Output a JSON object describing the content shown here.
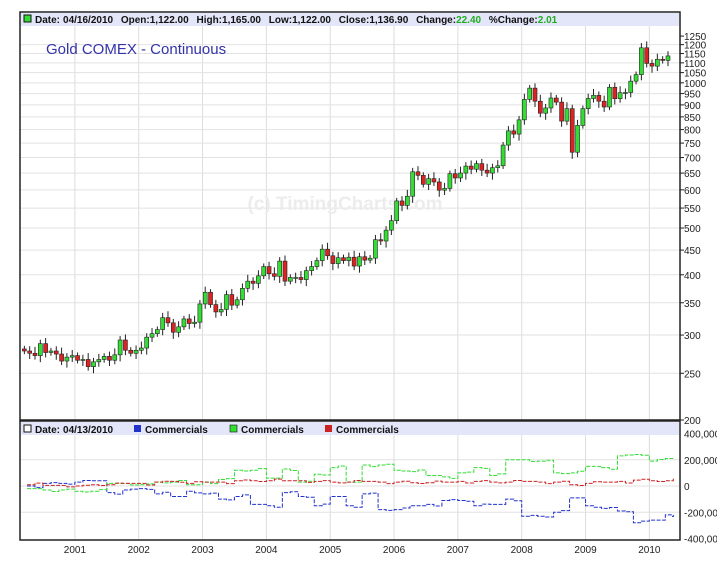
{
  "chart_data": [
    {
      "type": "candlestick",
      "title": "Gold COMEX - Continuous",
      "watermark": "(c) TimingCharts.com",
      "info": {
        "date_label": "Date:",
        "date": "04/16/2010",
        "open_label": "Open:",
        "open": "1,122.00",
        "high_label": "High:",
        "high": "1,165.00",
        "low_label": "Low:",
        "low": "1,122.00",
        "close_label": "Close:",
        "close": "1,136.90",
        "change_label": "Change:",
        "change": "22.40",
        "pct_label": "%Change:",
        "pct": "2.01"
      },
      "scale": "log",
      "ylim": [
        200,
        1250
      ],
      "yticks": [
        200,
        250,
        300,
        350,
        400,
        450,
        500,
        550,
        600,
        650,
        700,
        750,
        800,
        850,
        900,
        950,
        1000,
        1050,
        1100,
        1150,
        1200,
        1250
      ],
      "start": "2000-03",
      "interval": "month",
      "closes": [
        278,
        275,
        272,
        288,
        276,
        278,
        274,
        265,
        270,
        272,
        266,
        267,
        258,
        264,
        267,
        271,
        266,
        273,
        293,
        279,
        275,
        279,
        282,
        297,
        302,
        308,
        326,
        318,
        304,
        312,
        324,
        317,
        319,
        348,
        368,
        347,
        335,
        339,
        364,
        346,
        355,
        375,
        388,
        384,
        398,
        416,
        402,
        397,
        427,
        388,
        395,
        395,
        391,
        408,
        416,
        428,
        452,
        438,
        422,
        434,
        428,
        435,
        417,
        436,
        429,
        433,
        473,
        470,
        495,
        518,
        569,
        557,
        582,
        654,
        643,
        616,
        633,
        623,
        599,
        604,
        648,
        635,
        650,
        672,
        662,
        680,
        659,
        650,
        667,
        673,
        743,
        795,
        783,
        838,
        924,
        975,
        916,
        865,
        887,
        930,
        912,
        833,
        884,
        718,
        816,
        884,
        928,
        942,
        916,
        891,
        979,
        927,
        954,
        955,
        1008,
        1040,
        1182,
        1097,
        1083,
        1119,
        1113,
        1137
      ],
      "colors": {
        "up": "#33dd33",
        "down": "#dd2222"
      }
    },
    {
      "type": "line",
      "info": {
        "date_label": "Date:",
        "date": "04/13/2010"
      },
      "legend": [
        {
          "name": "Commercials",
          "color": "#2233cc"
        },
        {
          "name": "Commercials",
          "color": "#33dd33"
        },
        {
          "name": "Commercials",
          "color": "#cc2222"
        }
      ],
      "ylim": [
        -400000,
        400000
      ],
      "yticks": [
        {
          "v": 400000,
          "label": "400,000"
        },
        {
          "v": 200000,
          "label": "200,000"
        },
        {
          "v": 0,
          "label": "0"
        },
        {
          "v": -200000,
          "label": "-200,000"
        },
        {
          "v": -400000,
          "label": "-400,000"
        }
      ],
      "start": 2000.25,
      "step_years": 0.25,
      "series": [
        {
          "name": "Commercials",
          "color": "#2233cc",
          "values": [
            0,
            20000,
            20000,
            30000,
            40000,
            -50000,
            -30000,
            -20000,
            -60000,
            -80000,
            -40000,
            -60000,
            -100000,
            -80000,
            -140000,
            -150000,
            -50000,
            -80000,
            -150000,
            -80000,
            -150000,
            -60000,
            -180000,
            -180000,
            -150000,
            -140000,
            -110000,
            -110000,
            -150000,
            -140000,
            -100000,
            -230000,
            -230000,
            -200000,
            -90000,
            -150000,
            -170000,
            -190000,
            -280000,
            -260000,
            -220000
          ]
        },
        {
          "name": "Commercials",
          "color": "#33dd33",
          "values": [
            -20000,
            -30000,
            -30000,
            -40000,
            -40000,
            20000,
            20000,
            10000,
            30000,
            30000,
            10000,
            30000,
            50000,
            120000,
            120000,
            60000,
            130000,
            30000,
            90000,
            140000,
            30000,
            160000,
            160000,
            120000,
            110000,
            80000,
            70000,
            100000,
            140000,
            80000,
            200000,
            200000,
            190000,
            100000,
            100000,
            150000,
            140000,
            230000,
            240000,
            190000,
            210000
          ]
        },
        {
          "name": "Commercials",
          "color": "#cc2222",
          "values": [
            10000,
            5000,
            5000,
            0,
            10000,
            10000,
            20000,
            20000,
            30000,
            35000,
            20000,
            30000,
            30000,
            40000,
            40000,
            40000,
            40000,
            40000,
            35000,
            30000,
            30000,
            35000,
            30000,
            30000,
            25000,
            25000,
            30000,
            35000,
            35000,
            30000,
            30000,
            35000,
            30000,
            30000,
            10000,
            20000,
            30000,
            35000,
            45000,
            40000,
            40000
          ]
        }
      ]
    }
  ],
  "xaxis": {
    "ticks": [
      "2001",
      "2002",
      "2003",
      "2004",
      "2005",
      "2006",
      "2007",
      "2008",
      "2009",
      "2010"
    ]
  }
}
